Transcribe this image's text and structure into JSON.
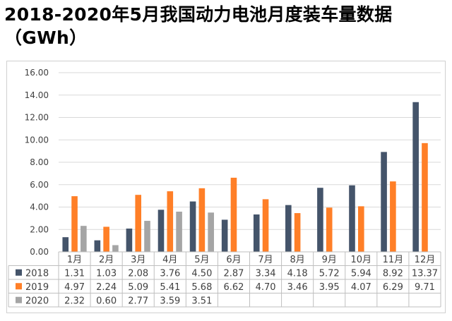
{
  "title_line1": "2018-2020年5月我国动力电池月度装车量数据",
  "title_line2": "（GWh）",
  "chart_data": {
    "type": "bar",
    "categories": [
      "1月",
      "2月",
      "3月",
      "4月",
      "5月",
      "6月",
      "7月",
      "8月",
      "9月",
      "10月",
      "11月",
      "12月"
    ],
    "series": [
      {
        "name": "2018",
        "color": "#44546a",
        "values": [
          1.31,
          1.03,
          2.08,
          3.76,
          4.5,
          2.87,
          3.34,
          4.18,
          5.72,
          5.94,
          8.92,
          13.37
        ],
        "labels": [
          "1.31",
          "1.03",
          "2.08",
          "3.76",
          "4.50",
          "2.87",
          "3.34",
          "4.18",
          "5.72",
          "5.94",
          "8.92",
          "13.37"
        ]
      },
      {
        "name": "2019",
        "color": "#ff7f27",
        "values": [
          4.97,
          2.24,
          5.09,
          5.41,
          5.68,
          6.62,
          4.7,
          3.46,
          3.95,
          4.07,
          6.29,
          9.71
        ],
        "labels": [
          "4.97",
          "2.24",
          "5.09",
          "5.41",
          "5.68",
          "6.62",
          "4.70",
          "3.46",
          "3.95",
          "4.07",
          "6.29",
          "9.71"
        ]
      },
      {
        "name": "2020",
        "color": "#a5a5a5",
        "values": [
          2.32,
          0.6,
          2.77,
          3.59,
          3.51,
          null,
          null,
          null,
          null,
          null,
          null,
          null
        ],
        "labels": [
          "2.32",
          "0.60",
          "2.77",
          "3.59",
          "3.51",
          "",
          "",
          "",
          "",
          "",
          "",
          ""
        ]
      }
    ],
    "yticks": [
      "0.00",
      "2.00",
      "4.00",
      "6.00",
      "8.00",
      "10.00",
      "12.00",
      "14.00",
      "16.00"
    ],
    "ylim": [
      0,
      16
    ],
    "grid": true,
    "legend": "data-table"
  }
}
